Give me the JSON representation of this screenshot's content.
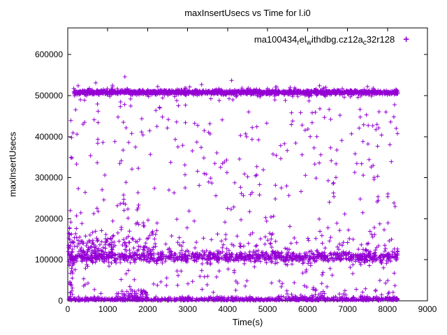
{
  "chart_data": {
    "type": "scatter",
    "title": "maxInsertUsecs vs Time for l.i0",
    "xlabel": "Time(s)",
    "ylabel": "maxInsertUsecs",
    "xlim": [
      0,
      9000
    ],
    "ylim": [
      0,
      665000
    ],
    "xticks": [
      0,
      1000,
      2000,
      3000,
      4000,
      5000,
      6000,
      7000,
      8000,
      9000
    ],
    "yticks": [
      0,
      100000,
      200000,
      300000,
      400000,
      500000,
      600000
    ],
    "grid": false,
    "legend": {
      "position": "top-right-inside",
      "marker": "+",
      "series_name": "ma100434_rel_withdbg.cz12a_c32r128",
      "segments": [
        {
          "text": "ma100434",
          "sub": false
        },
        {
          "text": "r",
          "sub": true
        },
        {
          "text": "el",
          "sub": false
        },
        {
          "text": "w",
          "sub": true
        },
        {
          "text": "ithdbg.cz12a",
          "sub": false
        },
        {
          "text": "c",
          "sub": true
        },
        {
          "text": "32r128",
          "sub": false
        }
      ]
    },
    "series": [
      {
        "name": "ma100434_rel_withdbg.cz12a_c32r128",
        "marker": "plus",
        "color": "#9400D3",
        "distribution": {
          "seed": 42,
          "x_data_range": [
            0,
            8260
          ],
          "bands": [
            {
              "name": "top-plateau",
              "shape": "normal",
              "y_center": 508000,
              "y_sigma": 2600,
              "x_range": [
                140,
                8260
              ],
              "count": 1500
            },
            {
              "name": "top-fuzz",
              "shape": "normal",
              "y_center": 508000,
              "y_sigma": 6000,
              "x_range": [
                140,
                8260
              ],
              "count": 180
            },
            {
              "name": "mid-plateau",
              "shape": "normal",
              "y_center": 107000,
              "y_sigma": 6500,
              "x_range": [
                10,
                8260
              ],
              "count": 950
            },
            {
              "name": "mid-upper-spread",
              "shape": "normal",
              "y_center": 135000,
              "y_sigma": 18000,
              "x_range": [
                10,
                2200
              ],
              "count": 140
            },
            {
              "name": "mid-upper-sparse",
              "shape": "normal",
              "y_center": 128000,
              "y_sigma": 15000,
              "x_range": [
                2200,
                8260
              ],
              "count": 90
            },
            {
              "name": "low-plateau",
              "shape": "half-normal",
              "y_center": 800,
              "y_sigma": 3800,
              "x_range": [
                20,
                8260
              ],
              "count": 750
            },
            {
              "name": "low-bumps-early",
              "shape": "normal",
              "y_center": 15000,
              "y_sigma": 8000,
              "x_range": [
                1200,
                2000
              ],
              "count": 45
            },
            {
              "name": "low-bumps-late",
              "shape": "normal",
              "y_center": 14000,
              "y_sigma": 7000,
              "x_range": [
                5400,
                8100
              ],
              "count": 35
            }
          ],
          "uniform_scatter": [
            {
              "x_range": [
                60,
                8260
              ],
              "y_range": [
                15000,
                505000
              ],
              "count": 430
            },
            {
              "x_range": [
                20,
                130
              ],
              "y_range": [
                3000,
                200000
              ],
              "count": 35
            }
          ],
          "outliers": [
            [
              260,
              524000
            ],
            [
              700,
              531000
            ],
            [
              1120,
              525000
            ],
            [
              1430,
              546000
            ],
            [
              2250,
              522000
            ],
            [
              3350,
              527000
            ],
            [
              4100,
              537000
            ],
            [
              5200,
              521000
            ],
            [
              6300,
              524000
            ],
            [
              7500,
              522000
            ]
          ],
          "y_clamp": [
            200,
            659000
          ]
        }
      }
    ]
  }
}
